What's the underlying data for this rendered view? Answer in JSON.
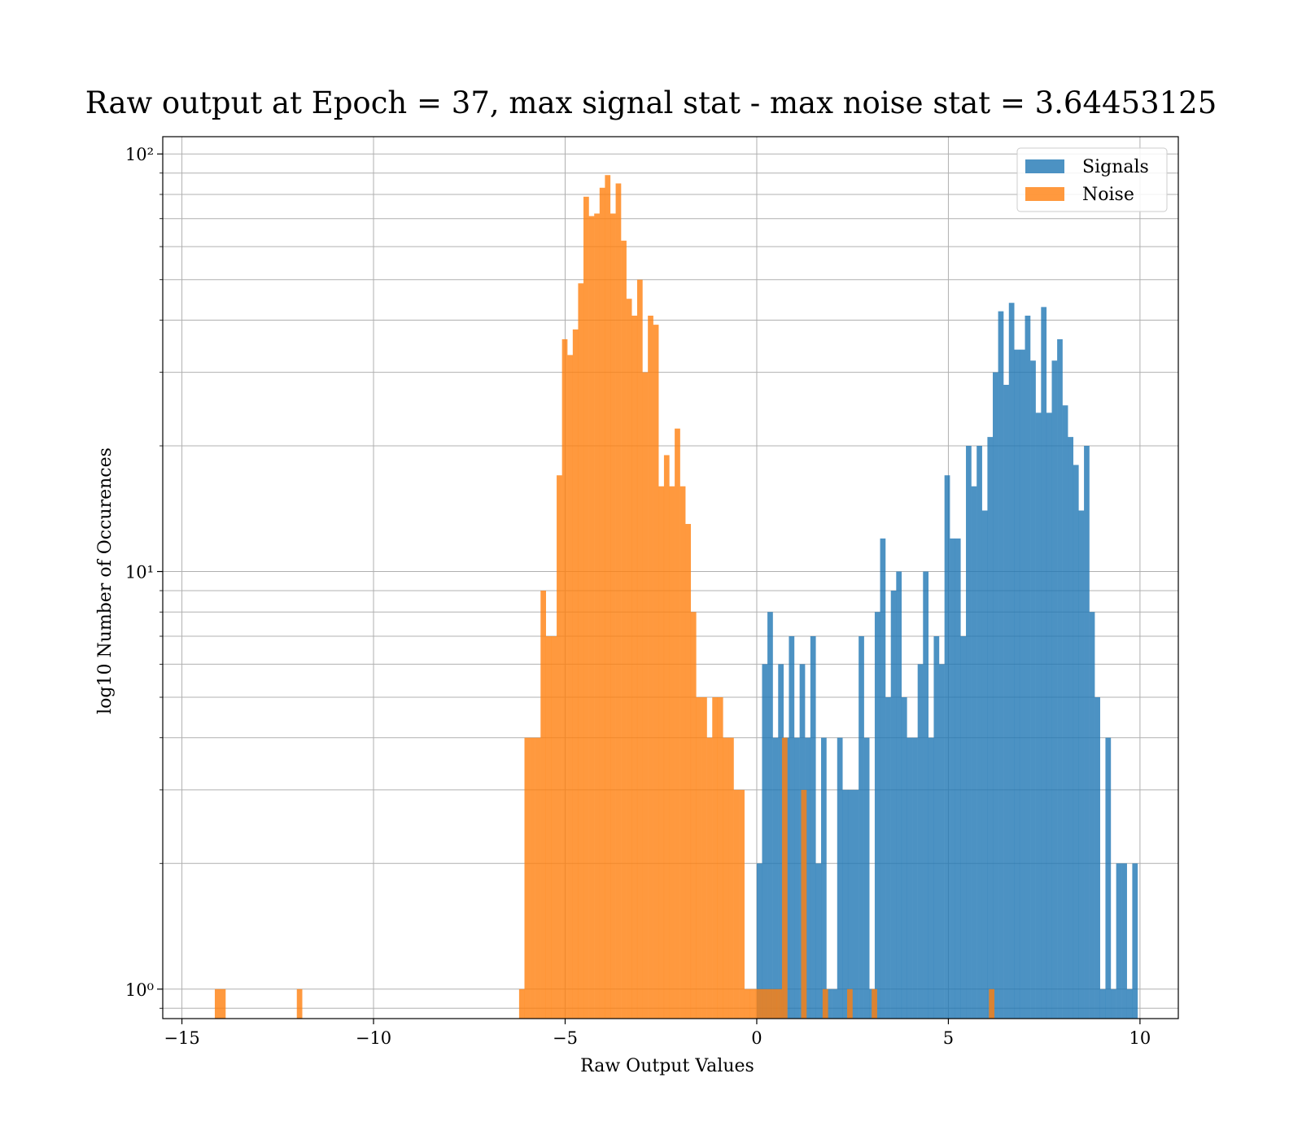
{
  "chart_data": {
    "type": "bar",
    "title": "Raw output at Epoch = 37, max signal stat - max noise stat = 3.64453125",
    "xlabel": "Raw Output Values",
    "ylabel": "log10 Number of Occurences",
    "xlim": [
      -15.5,
      11
    ],
    "ylim": [
      0.85,
      110
    ],
    "yscale": "log",
    "x_ticks": [
      -15,
      -10,
      -5,
      0,
      5,
      10
    ],
    "x_tick_labels": [
      "−15",
      "−10",
      "−5",
      "0",
      "5",
      "10"
    ],
    "y_ticks": [
      1,
      10,
      100
    ],
    "y_tick_labels": [
      "10⁰",
      "10¹",
      "10²"
    ],
    "y_minor_ticks": [
      0.9,
      2,
      3,
      4,
      5,
      6,
      7,
      8,
      9,
      20,
      30,
      40,
      50,
      60,
      70,
      80,
      90
    ],
    "grid": true,
    "legend_position": "top-right",
    "series": [
      {
        "name": "Signals",
        "color": "#1f77b4",
        "bin_width": 0.143,
        "bins": [
          [
            0.07,
            2
          ],
          [
            0.21,
            6
          ],
          [
            0.35,
            8
          ],
          [
            0.49,
            4
          ],
          [
            0.63,
            6
          ],
          [
            0.77,
            4
          ],
          [
            0.91,
            7
          ],
          [
            1.05,
            4
          ],
          [
            1.19,
            6
          ],
          [
            1.33,
            4
          ],
          [
            1.47,
            7
          ],
          [
            1.61,
            2
          ],
          [
            1.75,
            4
          ],
          [
            1.89,
            1
          ],
          [
            2.03,
            1
          ],
          [
            2.17,
            4
          ],
          [
            2.31,
            3
          ],
          [
            2.45,
            3
          ],
          [
            2.59,
            3
          ],
          [
            2.73,
            7
          ],
          [
            2.87,
            4
          ],
          [
            3.01,
            1
          ],
          [
            3.15,
            8
          ],
          [
            3.29,
            12
          ],
          [
            3.43,
            5
          ],
          [
            3.57,
            9
          ],
          [
            3.71,
            10
          ],
          [
            3.85,
            5
          ],
          [
            3.99,
            4
          ],
          [
            4.13,
            4
          ],
          [
            4.27,
            6
          ],
          [
            4.41,
            10
          ],
          [
            4.55,
            4
          ],
          [
            4.69,
            7
          ],
          [
            4.83,
            6
          ],
          [
            4.97,
            17
          ],
          [
            5.11,
            12
          ],
          [
            5.25,
            12
          ],
          [
            5.39,
            7
          ],
          [
            5.53,
            20
          ],
          [
            5.67,
            16
          ],
          [
            5.81,
            20
          ],
          [
            5.95,
            14
          ],
          [
            6.09,
            21
          ],
          [
            6.23,
            30
          ],
          [
            6.37,
            42
          ],
          [
            6.51,
            28
          ],
          [
            6.65,
            44
          ],
          [
            6.79,
            34
          ],
          [
            6.93,
            34
          ],
          [
            7.07,
            41
          ],
          [
            7.21,
            32
          ],
          [
            7.35,
            24
          ],
          [
            7.49,
            43
          ],
          [
            7.63,
            24
          ],
          [
            7.77,
            32
          ],
          [
            7.91,
            36
          ],
          [
            8.05,
            25
          ],
          [
            8.19,
            21
          ],
          [
            8.33,
            18
          ],
          [
            8.47,
            14
          ],
          [
            8.61,
            20
          ],
          [
            8.75,
            8
          ],
          [
            8.89,
            5
          ],
          [
            9.03,
            1
          ],
          [
            9.17,
            4
          ],
          [
            9.31,
            1
          ],
          [
            9.45,
            2
          ],
          [
            9.59,
            2
          ],
          [
            9.73,
            1
          ],
          [
            9.87,
            2
          ]
        ]
      },
      {
        "name": "Noise",
        "color": "#ff7f0e",
        "bin_width": 0.143,
        "bins": [
          [
            -14.07,
            1
          ],
          [
            -13.93,
            1
          ],
          [
            -11.93,
            1
          ],
          [
            -6.13,
            1
          ],
          [
            -5.99,
            4
          ],
          [
            -5.85,
            4
          ],
          [
            -5.71,
            4
          ],
          [
            -5.57,
            9
          ],
          [
            -5.43,
            7
          ],
          [
            -5.29,
            7
          ],
          [
            -5.15,
            17
          ],
          [
            -5.01,
            36
          ],
          [
            -4.87,
            33
          ],
          [
            -4.73,
            38
          ],
          [
            -4.59,
            49
          ],
          [
            -4.45,
            79
          ],
          [
            -4.31,
            71
          ],
          [
            -4.17,
            72
          ],
          [
            -4.03,
            83
          ],
          [
            -3.89,
            89
          ],
          [
            -3.75,
            72
          ],
          [
            -3.61,
            85
          ],
          [
            -3.47,
            62
          ],
          [
            -3.33,
            45
          ],
          [
            -3.19,
            41
          ],
          [
            -3.05,
            50
          ],
          [
            -2.91,
            30
          ],
          [
            -2.77,
            41
          ],
          [
            -2.63,
            39
          ],
          [
            -2.49,
            16
          ],
          [
            -2.35,
            19
          ],
          [
            -2.21,
            16
          ],
          [
            -2.07,
            22
          ],
          [
            -1.93,
            16
          ],
          [
            -1.79,
            13
          ],
          [
            -1.65,
            8
          ],
          [
            -1.51,
            5
          ],
          [
            -1.37,
            5
          ],
          [
            -1.23,
            4
          ],
          [
            -1.09,
            5
          ],
          [
            -0.95,
            5
          ],
          [
            -0.81,
            4
          ],
          [
            -0.67,
            4
          ],
          [
            -0.53,
            3
          ],
          [
            -0.39,
            3
          ],
          [
            -0.25,
            1
          ],
          [
            -0.11,
            1
          ],
          [
            0.03,
            1
          ],
          [
            0.17,
            1
          ],
          [
            0.31,
            1
          ],
          [
            0.45,
            1
          ],
          [
            0.59,
            1
          ],
          [
            0.73,
            4
          ],
          [
            1.23,
            3
          ],
          [
            1.79,
            1
          ],
          [
            2.43,
            1
          ],
          [
            3.07,
            1
          ],
          [
            6.13,
            1
          ]
        ]
      }
    ]
  }
}
